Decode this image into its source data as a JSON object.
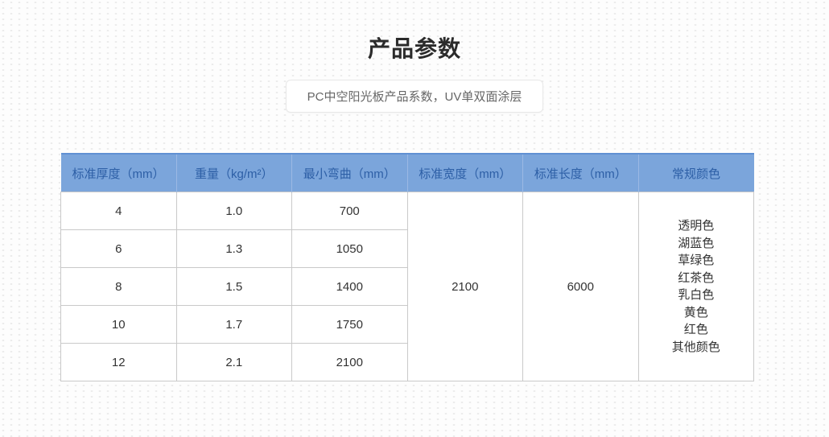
{
  "page": {
    "title": "产品参数",
    "subtitle": "PC中空阳光板产品系数，UV单双面涂层"
  },
  "table": {
    "headers": [
      "标准厚度（mm）",
      "重量（kg/m²）",
      "最小弯曲（mm）",
      "标准宽度（mm）",
      "标准长度（mm）",
      "常规颜色"
    ],
    "rows": [
      [
        "4",
        "1.0",
        "700"
      ],
      [
        "6",
        "1.3",
        "1050"
      ],
      [
        "8",
        "1.5",
        "1400"
      ],
      [
        "10",
        "1.7",
        "1750"
      ],
      [
        "12",
        "2.1",
        "2100"
      ]
    ],
    "standard_width": "2100",
    "standard_length": "6000",
    "colors": [
      "透明色",
      "湖蓝色",
      "草绿色",
      "红茶色",
      "乳白色",
      "黄色",
      "红色",
      "其他颜色"
    ]
  },
  "theme": {
    "header_bg": "#7ba5db",
    "header_text": "#2d5fa6",
    "header_top_border": "#6090d3",
    "body_border": "#c9c9c9",
    "body_text": "#333333",
    "subtitle_text": "#666666",
    "subtitle_border": "#e8e8e8",
    "page_bg": "#fdfdfd"
  }
}
